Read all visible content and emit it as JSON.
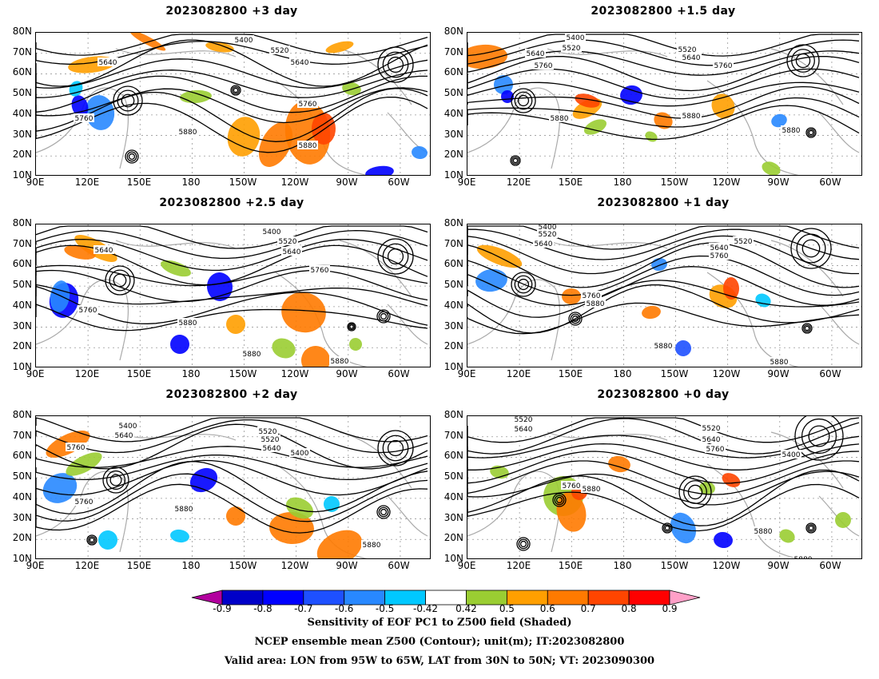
{
  "panels": [
    {
      "title": "2023082800 +3 day"
    },
    {
      "title": "2023082800 +1.5 day"
    },
    {
      "title": "2023082800 +2.5 day"
    },
    {
      "title": "2023082800 +1 day"
    },
    {
      "title": "2023082800 +2 day"
    },
    {
      "title": "2023082800 +0 day"
    }
  ],
  "lat_labels": [
    "80N",
    "70N",
    "60N",
    "50N",
    "40N",
    "30N",
    "20N",
    "10N"
  ],
  "lon_labels": [
    "90E",
    "120E",
    "150E",
    "180",
    "150W",
    "120W",
    "90W",
    "60W"
  ],
  "contour_labels": [
    [
      "5400",
      "5520",
      "5640",
      "5640",
      "5760",
      "5760",
      "5880",
      "5880"
    ],
    [
      "5400",
      "5520",
      "5640",
      "5760",
      "5520",
      "5640",
      "5760",
      "5880",
      "5880",
      "5880"
    ],
    [
      "5400",
      "5520",
      "5640",
      "5640",
      "5760",
      "5760",
      "5880",
      "5880",
      "5880"
    ],
    [
      "5400",
      "5520",
      "5640",
      "5520",
      "5640",
      "5760",
      "5760",
      "5880",
      "5880",
      "5880"
    ],
    [
      "5400",
      "5520",
      "5640",
      "5520",
      "5640",
      "5760",
      "5400",
      "5760",
      "5880",
      "5880"
    ],
    [
      "5520",
      "5640",
      "5520",
      "5640",
      "5760",
      "5400",
      "5760",
      "5880",
      "5880",
      "5880"
    ]
  ],
  "colorbar": {
    "colors": [
      "#b2009e",
      "#0000c8",
      "#0000ff",
      "#1e50ff",
      "#2888ff",
      "#00c8ff",
      "#ffffff",
      "#9acd32",
      "#ff9f00",
      "#ff7a00",
      "#ff4500",
      "#ff0000",
      "#ffa0c8"
    ],
    "ticks": [
      "-0.9",
      "-0.8",
      "-0.7",
      "-0.6",
      "-0.5",
      "-0.42",
      "0.42",
      "0.5",
      "0.6",
      "0.7",
      "0.8",
      "0.9"
    ]
  },
  "footer": {
    "line1": "Sensitivity of EOF PC1 to Z500 field (Shaded)",
    "line2": "NCEP ensemble mean Z500 (Contour); unit(m); IT:2023082800",
    "line3": "Valid area: LON from 95W to 65W, LAT from 30N to 50N; VT: 2023090300"
  }
}
